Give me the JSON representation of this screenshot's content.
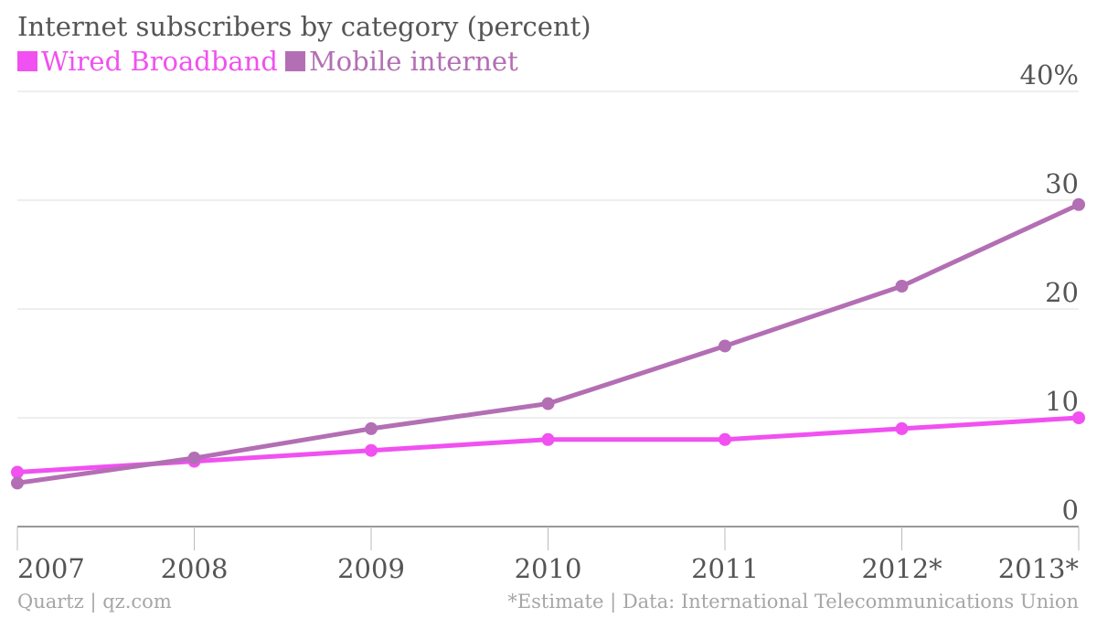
{
  "chart_data": {
    "type": "line",
    "title": "Internet subscribers by category (percent)",
    "categories": [
      "2007",
      "2008",
      "2009",
      "2010",
      "2011",
      "2012*",
      "2013*"
    ],
    "series": [
      {
        "name": "Wired Broadband",
        "color": "#f051f0",
        "values": [
          5,
          6,
          7,
          8,
          8,
          9,
          10
        ]
      },
      {
        "name": "Mobile internet",
        "color": "#b36fb3",
        "values": [
          4,
          6.3,
          9,
          11.3,
          16.6,
          22.1,
          29.6
        ]
      }
    ],
    "y_ticks": [
      "0",
      "10",
      "20",
      "30",
      "40%"
    ],
    "y_tick_values": [
      0,
      10,
      20,
      30,
      40
    ],
    "ylim": [
      0,
      40
    ],
    "grid": true,
    "legend_position": "top-left"
  },
  "footer": {
    "source_left": "Quartz | qz.com",
    "source_right": "*Estimate | Data: International Telecommunications Union"
  }
}
